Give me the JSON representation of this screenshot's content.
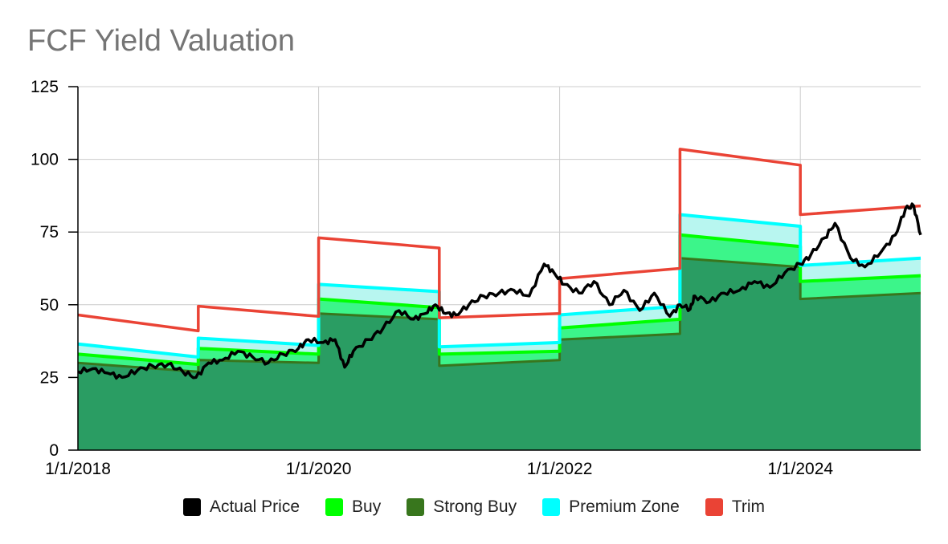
{
  "chart_data": {
    "type": "area",
    "title": "FCF Yield Valuation",
    "xlabel": "",
    "ylabel": "",
    "ylim": [
      0,
      125
    ],
    "y_ticks": [
      "0",
      "25",
      "50",
      "75",
      "100",
      "125"
    ],
    "x_range": [
      "2018-01-01",
      "2024-12-31"
    ],
    "x_ticks": [
      {
        "date": "2018-01-01",
        "label": "1/1/2018"
      },
      {
        "date": "2020-01-01",
        "label": "1/1/2020"
      },
      {
        "date": "2022-01-01",
        "label": "1/1/2022"
      },
      {
        "date": "2024-01-01",
        "label": "1/1/2024"
      }
    ],
    "grid": true,
    "legend_position": "bottom",
    "band_series": [
      {
        "name": "Strong Buy",
        "color": "#38761d",
        "points": [
          [
            "2018-01-01",
            30
          ],
          [
            "2019-01-01",
            27
          ],
          [
            "2019-01-01",
            31
          ],
          [
            "2020-01-01",
            30
          ],
          [
            "2020-01-01",
            47
          ],
          [
            "2021-01-01",
            45
          ],
          [
            "2021-01-01",
            29
          ],
          [
            "2022-01-01",
            31
          ],
          [
            "2022-01-01",
            38
          ],
          [
            "2023-01-01",
            40
          ],
          [
            "2023-01-01",
            66
          ],
          [
            "2024-01-01",
            63
          ],
          [
            "2024-01-01",
            52
          ],
          [
            "2024-12-31",
            54
          ]
        ]
      },
      {
        "name": "Buy",
        "color": "#00ff00",
        "points": [
          [
            "2018-01-01",
            33
          ],
          [
            "2019-01-01",
            29.5
          ],
          [
            "2019-01-01",
            35
          ],
          [
            "2020-01-01",
            33
          ],
          [
            "2020-01-01",
            52
          ],
          [
            "2021-01-01",
            49
          ],
          [
            "2021-01-01",
            33
          ],
          [
            "2022-01-01",
            34
          ],
          [
            "2022-01-01",
            42
          ],
          [
            "2023-01-01",
            45
          ],
          [
            "2023-01-01",
            74
          ],
          [
            "2024-01-01",
            70
          ],
          [
            "2024-01-01",
            58
          ],
          [
            "2024-12-31",
            60
          ]
        ]
      },
      {
        "name": "Premium Zone",
        "color": "#00ffff",
        "points": [
          [
            "2018-01-01",
            36.5
          ],
          [
            "2019-01-01",
            32
          ],
          [
            "2019-01-01",
            38.5
          ],
          [
            "2020-01-01",
            36
          ],
          [
            "2020-01-01",
            57
          ],
          [
            "2021-01-01",
            54.5
          ],
          [
            "2021-01-01",
            35.5
          ],
          [
            "2022-01-01",
            37
          ],
          [
            "2022-01-01",
            46.5
          ],
          [
            "2023-01-01",
            49.5
          ],
          [
            "2023-01-01",
            81
          ],
          [
            "2024-01-01",
            77
          ],
          [
            "2024-01-01",
            63.5
          ],
          [
            "2024-12-31",
            66
          ]
        ]
      },
      {
        "name": "Trim",
        "color": "#ea4335",
        "points": [
          [
            "2018-01-01",
            46.5
          ],
          [
            "2019-01-01",
            41
          ],
          [
            "2019-01-01",
            49.5
          ],
          [
            "2020-01-01",
            46
          ],
          [
            "2020-01-01",
            73
          ],
          [
            "2021-01-01",
            69.5
          ],
          [
            "2021-01-01",
            45.5
          ],
          [
            "2022-01-01",
            47
          ],
          [
            "2022-01-01",
            59
          ],
          [
            "2023-01-01",
            62.5
          ],
          [
            "2023-01-01",
            103.5
          ],
          [
            "2024-01-01",
            98
          ],
          [
            "2024-01-01",
            81
          ],
          [
            "2024-12-31",
            84
          ]
        ]
      }
    ],
    "price_series": {
      "name": "Actual Price",
      "color": "#000000",
      "points": [
        [
          "2018-01-01",
          27
        ],
        [
          "2018-02-15",
          28
        ],
        [
          "2018-04-01",
          26.5
        ],
        [
          "2018-05-15",
          25
        ],
        [
          "2018-07-01",
          27.5
        ],
        [
          "2018-08-15",
          29
        ],
        [
          "2018-10-01",
          29.5
        ],
        [
          "2018-11-15",
          27
        ],
        [
          "2018-12-25",
          25
        ],
        [
          "2019-02-01",
          30
        ],
        [
          "2019-03-15",
          31
        ],
        [
          "2019-05-01",
          34
        ],
        [
          "2019-06-15",
          32
        ],
        [
          "2019-08-01",
          30
        ],
        [
          "2019-09-15",
          33
        ],
        [
          "2019-11-01",
          35
        ],
        [
          "2019-12-01",
          38
        ],
        [
          "2020-01-15",
          37
        ],
        [
          "2020-02-20",
          38
        ],
        [
          "2020-03-20",
          28.5
        ],
        [
          "2020-04-15",
          34
        ],
        [
          "2020-06-01",
          38
        ],
        [
          "2020-07-15",
          42
        ],
        [
          "2020-09-01",
          48
        ],
        [
          "2020-10-15",
          45
        ],
        [
          "2020-11-20",
          47
        ],
        [
          "2020-12-20",
          50
        ],
        [
          "2021-01-20",
          47
        ],
        [
          "2021-02-20",
          46.5
        ],
        [
          "2021-04-01",
          50
        ],
        [
          "2021-05-15",
          53
        ],
        [
          "2021-07-01",
          54
        ],
        [
          "2021-08-15",
          55
        ],
        [
          "2021-10-01",
          53
        ],
        [
          "2021-11-15",
          64
        ],
        [
          "2021-12-15",
          61
        ],
        [
          "2022-01-15",
          57
        ],
        [
          "2022-03-01",
          54
        ],
        [
          "2022-04-15",
          58
        ],
        [
          "2022-06-01",
          50
        ],
        [
          "2022-07-15",
          55
        ],
        [
          "2022-09-01",
          48
        ],
        [
          "2022-10-15",
          54
        ],
        [
          "2022-12-01",
          46
        ],
        [
          "2023-01-01",
          50
        ],
        [
          "2023-02-01",
          48.5
        ],
        [
          "2023-02-15",
          53
        ],
        [
          "2023-04-01",
          51
        ],
        [
          "2023-05-15",
          54
        ],
        [
          "2023-07-01",
          55
        ],
        [
          "2023-08-15",
          58
        ],
        [
          "2023-10-01",
          56
        ],
        [
          "2023-11-15",
          61
        ],
        [
          "2024-01-01",
          64
        ],
        [
          "2024-02-01",
          67
        ],
        [
          "2024-03-15",
          73
        ],
        [
          "2024-04-15",
          78
        ],
        [
          "2024-06-01",
          66
        ],
        [
          "2024-07-15",
          63
        ],
        [
          "2024-09-01",
          68
        ],
        [
          "2024-10-15",
          74
        ],
        [
          "2024-11-15",
          83
        ],
        [
          "2024-12-10",
          84
        ],
        [
          "2024-12-31",
          74
        ]
      ]
    },
    "legend": [
      {
        "label": "Actual Price",
        "color": "#000000"
      },
      {
        "label": "Buy",
        "color": "#00ff00"
      },
      {
        "label": "Strong Buy",
        "color": "#38761d"
      },
      {
        "label": "Premium Zone",
        "color": "#00ffff"
      },
      {
        "label": "Trim",
        "color": "#ea4335"
      }
    ]
  }
}
